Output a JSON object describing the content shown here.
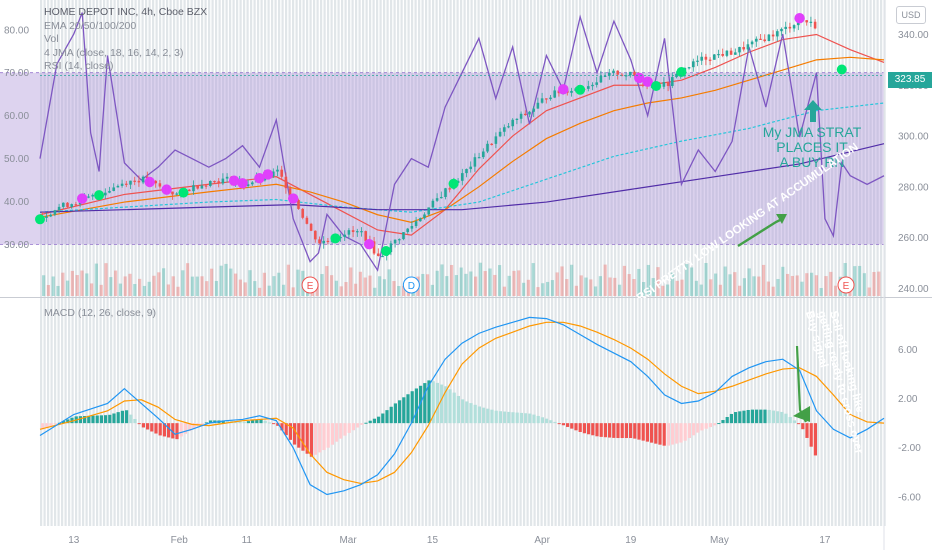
{
  "header": {
    "title": "HOME DEPOT INC, 4h, Cboe BZX",
    "indicators": [
      "EMA 20/50/100/200",
      "Vol",
      "4 JMA (close, 18, 16, 14, 2, 3)",
      "RSI (14, close)"
    ],
    "macd_label": "MACD (12, 26, close, 9)",
    "currency": "USD",
    "last_price": "323.85"
  },
  "annotations": {
    "jma_note_lines": [
      "My JMA STRAT",
      "PLACES IT",
      "A BUY RN"
    ],
    "rsi_note": "RSI PRETTY LOW LOOKING AT ACCUMULATION",
    "macd_note_lines": [
      "Sell off looking like",
      "getting ready to cross over",
      "Buy signal"
    ],
    "events": [
      "E",
      "D",
      "E"
    ]
  },
  "colors": {
    "up": "#26a69a",
    "down": "#ef5350",
    "rsi": "#7e57c2",
    "rsi_band": "#b39ddb",
    "macd": "#2196f3",
    "signal": "#ff9800",
    "ema20": "#ef5350",
    "ema50": "#f57c00",
    "ema100": "#26c6da",
    "ema200": "#512da8",
    "jma_buy": "#00e676",
    "jma_sell": "#e040fb"
  },
  "chart_data": [
    {
      "type": "line",
      "title": "HOME DEPOT INC, 4h, Cboe BZX",
      "x_ticks": [
        "13",
        "Feb",
        "11",
        "Mar",
        "15",
        "Apr",
        "19",
        "May",
        "17"
      ],
      "right_axis_ticks": [
        "340.00",
        "320.00",
        "300.00",
        "280.00",
        "260.00",
        "240.00"
      ],
      "left_axis_ticks": [
        "80.00",
        "70.00",
        "60.00",
        "50.00",
        "40.00",
        "30.00"
      ],
      "ylim": [
        237,
        352
      ],
      "rsi_ylim": [
        18,
        86
      ],
      "series": [
        {
          "name": "Price",
          "x": [
            0,
            2,
            4,
            6,
            8,
            10,
            12,
            14,
            16,
            18,
            20,
            22,
            24,
            26,
            28,
            30,
            32,
            33,
            34,
            36,
            38,
            40,
            42,
            44,
            46,
            48,
            50,
            52,
            54,
            56,
            58,
            60,
            62,
            64,
            66,
            68,
            70,
            72,
            74,
            76,
            78,
            80,
            82,
            84,
            86,
            88,
            90,
            92,
            94,
            96,
            98,
            100
          ],
          "values": [
            268,
            272,
            274,
            276,
            279,
            282,
            283,
            280,
            277,
            280,
            282,
            283,
            281,
            283,
            286,
            275,
            262,
            258,
            259,
            262,
            262,
            252,
            259,
            265,
            272,
            279,
            285,
            293,
            300,
            306,
            310,
            316,
            318,
            319,
            322,
            325,
            324,
            321,
            320,
            326,
            330,
            332,
            333,
            336,
            339,
            342,
            346,
            343,
            332,
            322,
            326,
            324
          ]
        },
        {
          "name": "EMA 20",
          "x": [
            0,
            10,
            20,
            28,
            32,
            36,
            40,
            44,
            48,
            52,
            56,
            60,
            64,
            68,
            72,
            76,
            80,
            84,
            88,
            92,
            96,
            100
          ],
          "values": [
            269,
            277,
            281,
            284,
            277,
            270,
            263,
            261,
            271,
            287,
            300,
            310,
            315,
            320,
            320,
            322,
            327,
            333,
            338,
            340,
            334,
            329
          ]
        },
        {
          "name": "EMA 50",
          "x": [
            0,
            10,
            20,
            28,
            32,
            36,
            40,
            44,
            48,
            52,
            56,
            60,
            64,
            68,
            72,
            76,
            80,
            84,
            88,
            92,
            96,
            100
          ],
          "values": [
            268,
            274,
            278,
            281,
            278,
            274,
            269,
            266,
            271,
            280,
            290,
            299,
            305,
            310,
            313,
            315,
            318,
            322,
            326,
            330,
            331,
            330
          ]
        },
        {
          "name": "EMA 100",
          "x": [
            0,
            20,
            28,
            36,
            44,
            52,
            60,
            68,
            76,
            84,
            92,
            100
          ],
          "values": [
            270,
            274,
            275,
            272,
            270,
            274,
            283,
            292,
            298,
            303,
            310,
            313
          ]
        },
        {
          "name": "EMA 200",
          "x": [
            0,
            20,
            30,
            40,
            50,
            60,
            70,
            80,
            90,
            100
          ],
          "values": [
            270,
            272,
            273,
            271,
            271,
            274,
            279,
            284,
            289,
            297
          ]
        },
        {
          "name": "RSI",
          "x": [
            0,
            2,
            4,
            5,
            6,
            7,
            8,
            10,
            12,
            14,
            16,
            18,
            20,
            22,
            24,
            26,
            28,
            30,
            32,
            33,
            34,
            36,
            38,
            40,
            42,
            44,
            46,
            48,
            50,
            52,
            54,
            56,
            58,
            60,
            62,
            64,
            66,
            68,
            70,
            72,
            74,
            76,
            78,
            80,
            82,
            84,
            86,
            88,
            90,
            92,
            93,
            94,
            95,
            96,
            98,
            100
          ],
          "values": [
            50,
            72,
            79,
            84,
            56,
            47,
            74,
            49,
            45,
            48,
            52,
            50,
            48,
            50,
            53,
            48,
            59,
            36,
            26,
            28,
            37,
            32,
            30,
            24,
            44,
            50,
            48,
            62,
            70,
            78,
            64,
            76,
            58,
            74,
            66,
            83,
            70,
            82,
            73,
            60,
            78,
            44,
            52,
            47,
            54,
            76,
            62,
            79,
            55,
            70,
            36,
            32,
            49,
            46,
            44,
            46
          ]
        }
      ]
    },
    {
      "type": "bar",
      "title": "MACD (12, 26, close, 9)",
      "right_axis_ticks": [
        "6.00",
        "2.00",
        "-2.00",
        "-6.00"
      ],
      "ylim": [
        -8.2,
        9.2
      ],
      "series": [
        {
          "name": "MACD",
          "x": [
            0,
            4,
            8,
            10,
            12,
            14,
            16,
            18,
            20,
            22,
            24,
            26,
            28,
            30,
            32,
            34,
            36,
            38,
            40,
            42,
            44,
            46,
            48,
            50,
            52,
            54,
            56,
            58,
            60,
            62,
            64,
            66,
            68,
            70,
            72,
            74,
            76,
            78,
            80,
            82,
            84,
            86,
            88,
            90,
            92,
            94,
            96,
            98,
            100
          ],
          "values": [
            -1.0,
            0.7,
            1.6,
            2.8,
            1.6,
            0.4,
            -0.9,
            -0.5,
            0.0,
            0.2,
            0.3,
            0.6,
            0.2,
            -2.0,
            -5.0,
            -5.8,
            -5.5,
            -5.0,
            -4.2,
            -2.5,
            0.0,
            3.0,
            5.2,
            6.5,
            7.3,
            7.8,
            8.2,
            8.6,
            8.5,
            8.0,
            7.2,
            6.4,
            5.7,
            5.0,
            3.8,
            2.3,
            1.6,
            1.8,
            2.5,
            3.8,
            4.5,
            5.0,
            5.2,
            4.3,
            1.0,
            -0.5,
            -1.2,
            -0.5,
            0.4
          ]
        },
        {
          "name": "Signal",
          "x": [
            0,
            4,
            8,
            10,
            12,
            14,
            16,
            18,
            20,
            22,
            24,
            26,
            28,
            30,
            32,
            34,
            36,
            38,
            40,
            42,
            44,
            46,
            48,
            50,
            52,
            54,
            56,
            58,
            60,
            62,
            64,
            66,
            68,
            70,
            72,
            74,
            76,
            78,
            80,
            82,
            84,
            86,
            88,
            90,
            92,
            94,
            96,
            98,
            100
          ],
          "values": [
            -0.5,
            0.2,
            1.0,
            1.8,
            1.9,
            1.3,
            0.3,
            -0.1,
            -0.2,
            0.0,
            0.2,
            0.3,
            0.4,
            -0.4,
            -2.5,
            -4.0,
            -4.6,
            -4.9,
            -4.7,
            -4.0,
            -2.4,
            -0.2,
            2.5,
            4.8,
            6.1,
            6.9,
            7.4,
            7.9,
            8.2,
            8.2,
            7.9,
            7.4,
            6.8,
            6.1,
            5.2,
            4.0,
            3.0,
            2.4,
            2.6,
            3.0,
            3.5,
            4.0,
            4.4,
            4.5,
            3.8,
            2.3,
            0.7,
            0.1,
            0.0
          ]
        }
      ]
    }
  ]
}
